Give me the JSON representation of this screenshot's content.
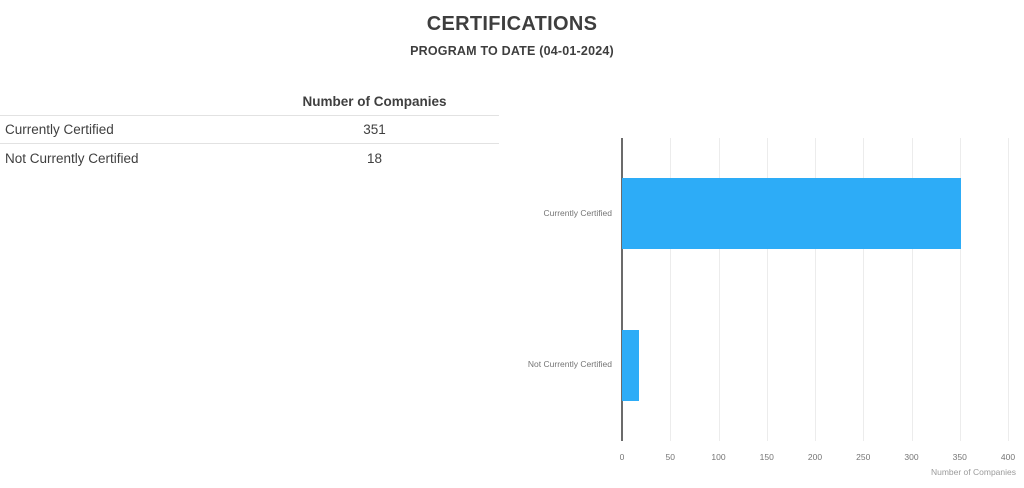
{
  "header": {
    "title": "CERTIFICATIONS",
    "subtitle": "PROGRAM TO DATE (04-01-2024)"
  },
  "table": {
    "value_header": "Number of Companies",
    "rows": [
      {
        "label": "Currently Certified",
        "value": "351"
      },
      {
        "label": "Not Currently Certified",
        "value": "18"
      }
    ]
  },
  "chart_data": {
    "type": "bar",
    "orientation": "horizontal",
    "categories": [
      "Currently Certified",
      "Not Currently Certified"
    ],
    "values": [
      351,
      18
    ],
    "title": "",
    "xlabel": "Number of Companies",
    "ylabel": "",
    "xlim": [
      0,
      400
    ],
    "xticks": [
      0,
      50,
      100,
      150,
      200,
      250,
      300,
      350,
      400
    ],
    "grid": true,
    "legend": "none",
    "bar_color": "#2dacf7",
    "axis_color": "#6b6b6b",
    "gridline_color": "#ececec"
  }
}
